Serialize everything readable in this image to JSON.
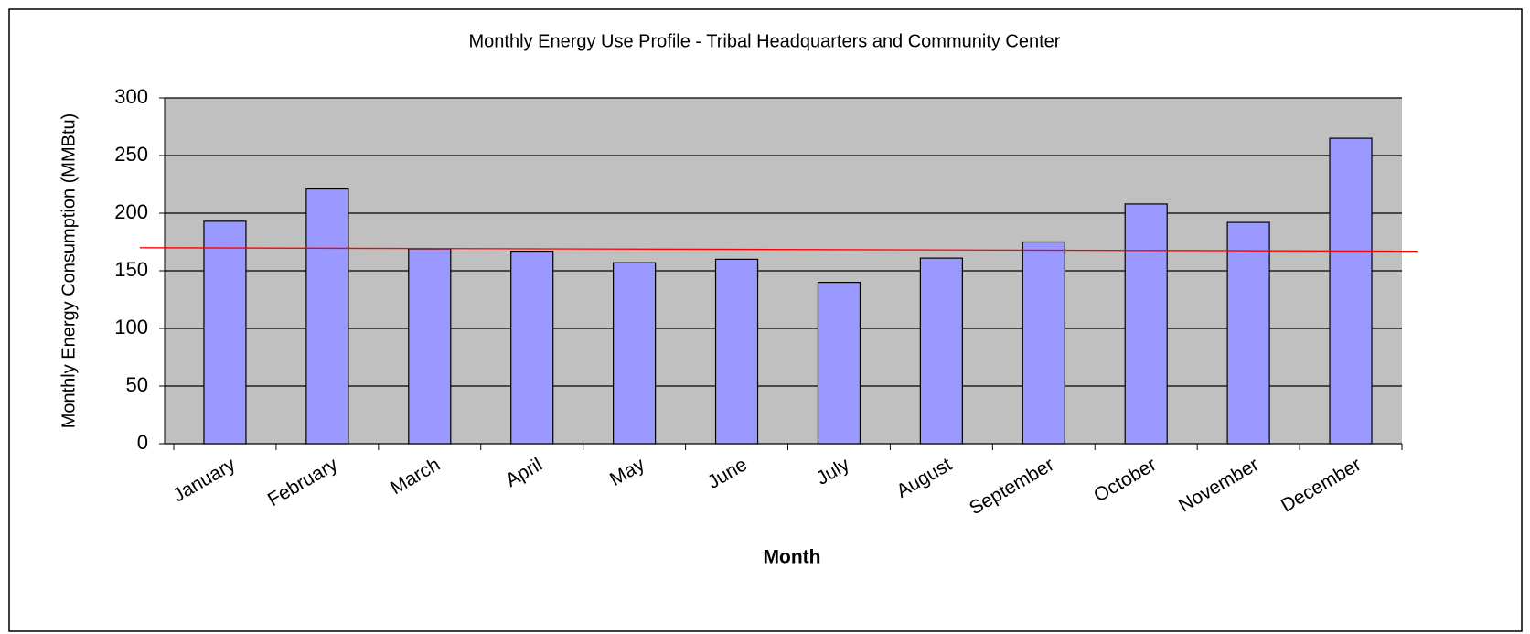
{
  "chart_data": {
    "type": "bar",
    "title": "Monthly  Energy  Use  Profile - Tribal  Headquarters  and  Community  Center",
    "x_label": "Month",
    "y_label": "Monthly Energy Consumption (MMBtu)",
    "categories": [
      "January",
      "February",
      "March",
      "April",
      "May",
      "June",
      "July",
      "August",
      "September",
      "October",
      "November",
      "December"
    ],
    "values": [
      193,
      221,
      169,
      167,
      157,
      160,
      140,
      161,
      175,
      208,
      192,
      265
    ],
    "color": "#9999ff",
    "ylim": [
      0,
      300
    ],
    "yticks": [
      0,
      50,
      100,
      150,
      200,
      250,
      300
    ],
    "grid": true,
    "plot_background": "#c0c0c0",
    "reference_line": {
      "color": "#ff0000",
      "values": [
        170,
        167
      ]
    }
  }
}
